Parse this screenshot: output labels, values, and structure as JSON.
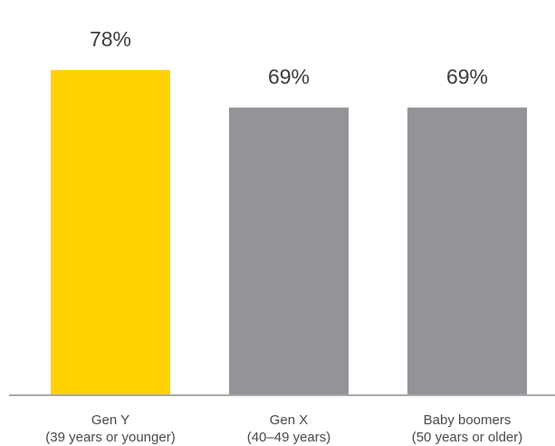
{
  "chart_data": {
    "type": "bar",
    "categories": [
      {
        "line1": "Gen Y",
        "line2": "(39 years or younger)"
      },
      {
        "line1": "Gen X",
        "line2": "(40–49 years)"
      },
      {
        "line1": "Baby boomers",
        "line2": "(50 years or older)"
      }
    ],
    "values": [
      78,
      69,
      69
    ],
    "value_labels": [
      "78%",
      "69%",
      "69%"
    ],
    "bar_colors": [
      "#FFD200",
      "#949498",
      "#949498"
    ],
    "axis_color": "#A8A8AC",
    "ylim": [
      0,
      100
    ],
    "grid": false,
    "legend": "none"
  }
}
